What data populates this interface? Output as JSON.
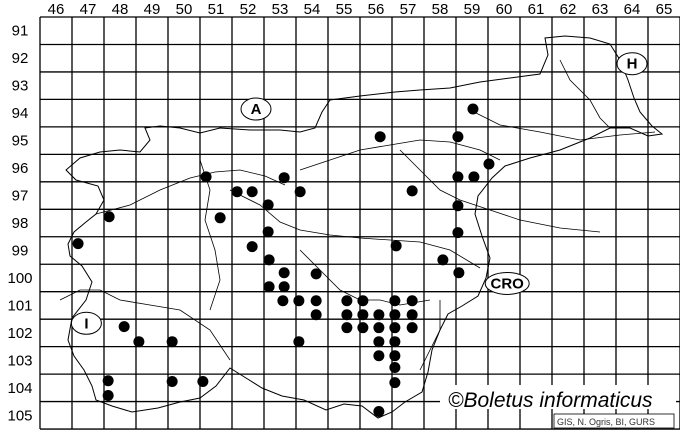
{
  "map": {
    "column_labels": [
      "46",
      "47",
      "48",
      "49",
      "50",
      "51",
      "52",
      "53",
      "54",
      "55",
      "56",
      "57",
      "58",
      "59",
      "60",
      "61",
      "62",
      "63",
      "64",
      "65"
    ],
    "row_labels": [
      "91",
      "92",
      "93",
      "94",
      "95",
      "96",
      "97",
      "98",
      "99",
      "100",
      "101",
      "102",
      "103",
      "104",
      "105"
    ],
    "regions": [
      {
        "label": "A",
        "col": 52.75,
        "row": 94.35
      },
      {
        "label": "H",
        "col": 64.5,
        "row": 92.7
      },
      {
        "label": "I",
        "col": 47.45,
        "row": 102.15
      },
      {
        "label": "CRO",
        "col": 60.6,
        "row": 100.7
      }
    ],
    "occurrences": [
      [
        59.53,
        94.35
      ],
      [
        56.63,
        95.36
      ],
      [
        59.06,
        95.36
      ],
      [
        60.03,
        96.35
      ],
      [
        51.19,
        96.82
      ],
      [
        53.63,
        96.85
      ],
      [
        59.06,
        96.82
      ],
      [
        59.56,
        96.82
      ],
      [
        52.16,
        97.36
      ],
      [
        52.63,
        97.36
      ],
      [
        54.13,
        97.36
      ],
      [
        57.63,
        97.33
      ],
      [
        53.13,
        97.84
      ],
      [
        48.16,
        98.27
      ],
      [
        51.63,
        98.31
      ],
      [
        59.06,
        97.87
      ],
      [
        53.13,
        98.82
      ],
      [
        59.06,
        98.85
      ],
      [
        47.19,
        99.25
      ],
      [
        52.63,
        99.36
      ],
      [
        57.13,
        99.33
      ],
      [
        58.59,
        99.84
      ],
      [
        53.16,
        99.84
      ],
      [
        59.09,
        100.31
      ],
      [
        53.63,
        100.31
      ],
      [
        54.63,
        100.35
      ],
      [
        53.16,
        100.82
      ],
      [
        53.63,
        100.82
      ],
      [
        53.59,
        101.33
      ],
      [
        54.09,
        101.33
      ],
      [
        54.63,
        101.33
      ],
      [
        54.63,
        101.84
      ],
      [
        55.59,
        101.33
      ],
      [
        56.09,
        101.33
      ],
      [
        57.09,
        101.33
      ],
      [
        57.63,
        101.33
      ],
      [
        55.59,
        101.84
      ],
      [
        56.09,
        101.84
      ],
      [
        56.59,
        101.84
      ],
      [
        57.09,
        101.84
      ],
      [
        57.63,
        101.84
      ],
      [
        55.59,
        102.31
      ],
      [
        56.09,
        102.31
      ],
      [
        56.59,
        102.31
      ],
      [
        57.09,
        102.31
      ],
      [
        57.63,
        102.31
      ],
      [
        48.63,
        102.27
      ],
      [
        49.09,
        102.82
      ],
      [
        50.13,
        102.82
      ],
      [
        54.09,
        102.82
      ],
      [
        56.59,
        102.82
      ],
      [
        57.09,
        102.82
      ],
      [
        56.59,
        103.33
      ],
      [
        57.09,
        103.33
      ],
      [
        57.09,
        103.76
      ],
      [
        57.09,
        104.31
      ],
      [
        48.13,
        104.24
      ],
      [
        50.13,
        104.27
      ],
      [
        51.09,
        104.27
      ],
      [
        48.13,
        104.78
      ],
      [
        56.59,
        105.36
      ]
    ]
  },
  "watermark": {
    "title": "©Boletus informaticus",
    "credit": "GIS, N. Ogris, BI, GURS"
  }
}
